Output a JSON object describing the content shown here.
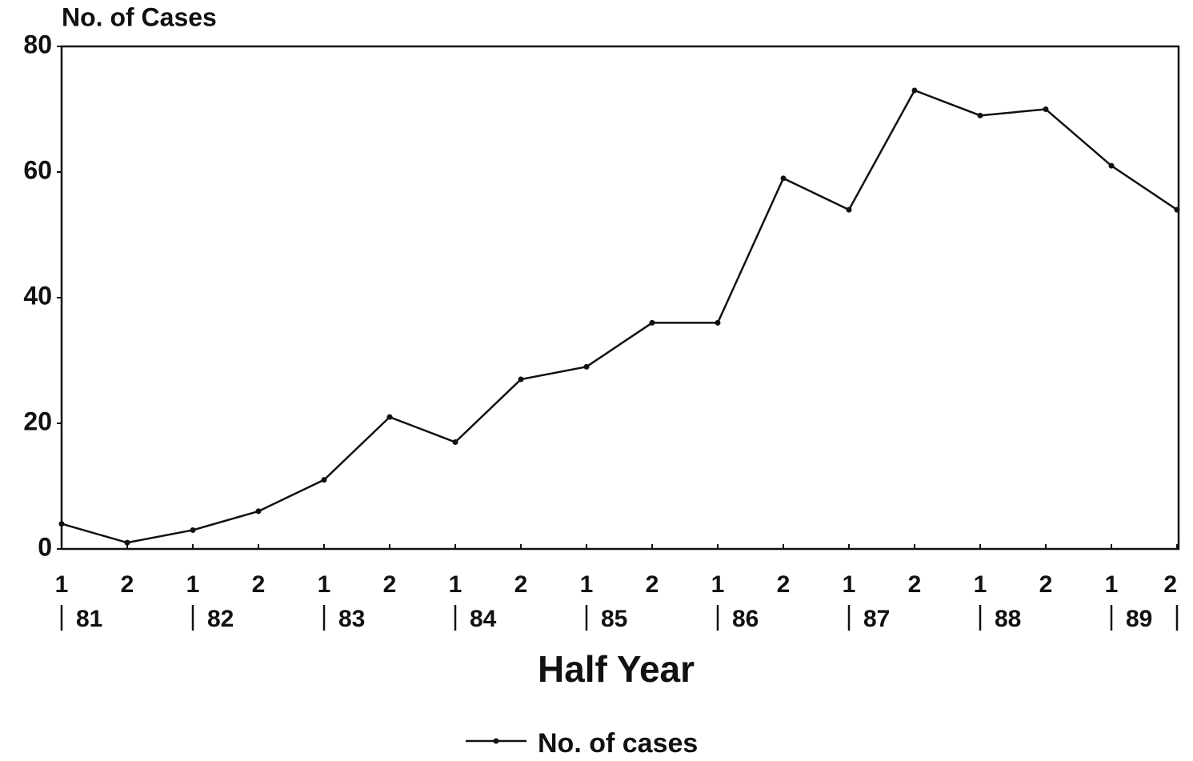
{
  "chart_data": {
    "type": "line",
    "y_label": "No. of Cases",
    "x_label": "Half Year",
    "categories": [
      "1",
      "2",
      "1",
      "2",
      "1",
      "2",
      "1",
      "2",
      "1",
      "2",
      "1",
      "2",
      "1",
      "2",
      "1",
      "2",
      "1",
      "2"
    ],
    "groups": [
      "81",
      "82",
      "83",
      "84",
      "85",
      "86",
      "87",
      "88",
      "89"
    ],
    "series": [
      {
        "name": "No. of cases",
        "color": "#111111",
        "values": [
          4,
          1,
          3,
          6,
          11,
          21,
          17,
          27,
          29,
          36,
          36,
          59,
          54,
          73,
          69,
          70,
          61,
          54
        ]
      }
    ],
    "ylim": [
      0,
      80
    ],
    "yticks": [
      0,
      20,
      40,
      60,
      80
    ],
    "grid": false,
    "legend": "bottom"
  }
}
